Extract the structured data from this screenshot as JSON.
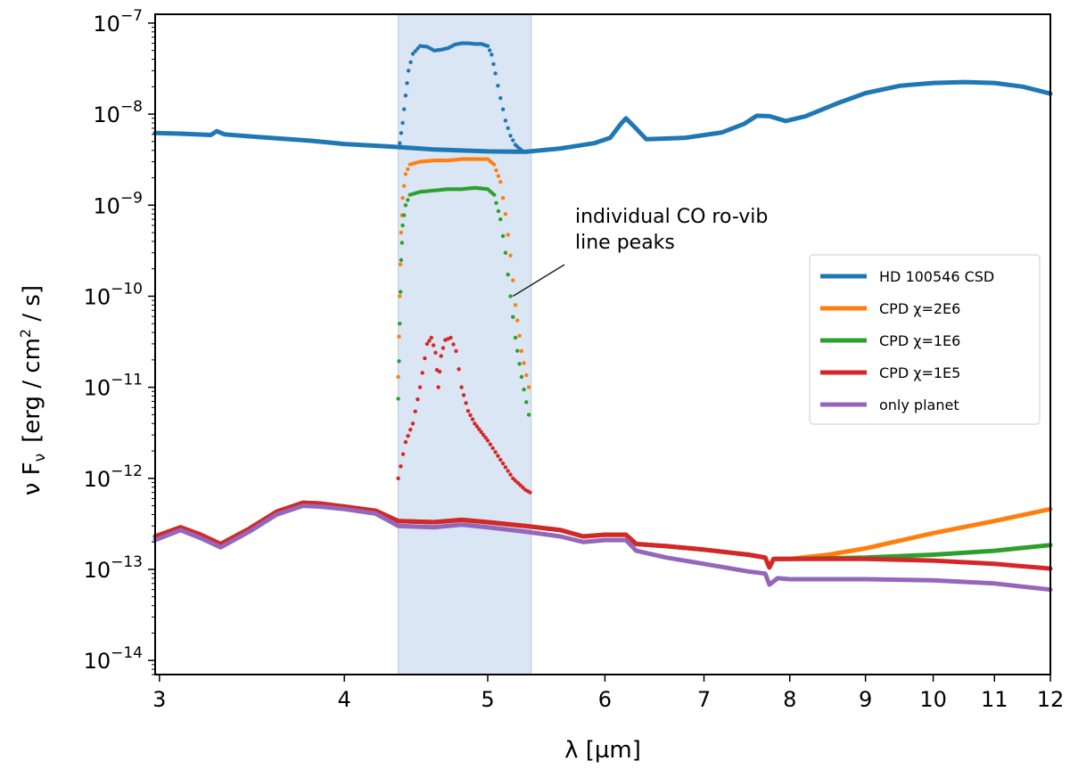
{
  "chart_data": {
    "type": "line",
    "xscale": "log",
    "yscale": "log",
    "xlabel": "λ [µm]",
    "ylabel_main": "ν F",
    "ylabel_sub": "ν",
    "ylabel_unit_pre": "[erg / cm",
    "ylabel_unit_sup": "2",
    "ylabel_unit_post": " / s]",
    "xlim": [
      2.98,
      12.0
    ],
    "ylim": [
      7e-15,
      1.25e-07
    ],
    "x_ticks": [
      {
        "value": 3,
        "label": "3"
      },
      {
        "value": 4,
        "label": "4"
      },
      {
        "value": 5,
        "label": "5"
      },
      {
        "value": 6,
        "label": "6"
      },
      {
        "value": 7,
        "label": "7"
      },
      {
        "value": 8,
        "label": "8"
      },
      {
        "value": 9,
        "label": "9"
      },
      {
        "value": 10,
        "label": "10"
      },
      {
        "value": 11,
        "label": "11"
      },
      {
        "value": 12,
        "label": "12"
      }
    ],
    "y_ticks": [
      {
        "value": 1e-14,
        "base": "10",
        "exp": "−14"
      },
      {
        "value": 1e-13,
        "base": "10",
        "exp": "−13"
      },
      {
        "value": 1e-12,
        "base": "10",
        "exp": "−12"
      },
      {
        "value": 1e-11,
        "base": "10",
        "exp": "−11"
      },
      {
        "value": 1e-10,
        "base": "10",
        "exp": "−10"
      },
      {
        "value": 1e-09,
        "base": "10",
        "exp": "−9"
      },
      {
        "value": 1e-08,
        "base": "10",
        "exp": "−8"
      },
      {
        "value": 1e-07,
        "base": "10",
        "exp": "−7"
      }
    ],
    "shaded_band": {
      "x_range": [
        4.35,
        5.35
      ],
      "color": "#dae6f3"
    },
    "series": [
      {
        "name": "HD 100546 CSD",
        "legend_label": "HD 100546 CSD",
        "color": "#1f77b4",
        "style": "line",
        "points": [
          [
            2.98,
            6.2e-09
          ],
          [
            3.1,
            6.1e-09
          ],
          [
            3.25,
            5.9e-09
          ],
          [
            3.28,
            6.5e-09
          ],
          [
            3.32,
            6e-09
          ],
          [
            3.5,
            5.6e-09
          ],
          [
            3.8,
            5.1e-09
          ],
          [
            4.0,
            4.7e-09
          ],
          [
            4.3,
            4.4e-09
          ],
          [
            4.6,
            4.1e-09
          ],
          [
            5.0,
            3.9e-09
          ],
          [
            5.3,
            3.85e-09
          ],
          [
            5.6,
            4.2e-09
          ],
          [
            5.9,
            4.8e-09
          ],
          [
            6.05,
            5.5e-09
          ],
          [
            6.15,
            7.8e-09
          ],
          [
            6.2,
            9e-09
          ],
          [
            6.27,
            7.5e-09
          ],
          [
            6.4,
            5.3e-09
          ],
          [
            6.8,
            5.5e-09
          ],
          [
            7.2,
            6.3e-09
          ],
          [
            7.45,
            7.8e-09
          ],
          [
            7.6,
            9.6e-09
          ],
          [
            7.75,
            9.5e-09
          ],
          [
            7.95,
            8.4e-09
          ],
          [
            8.2,
            9.5e-09
          ],
          [
            8.6,
            1.3e-08
          ],
          [
            9.0,
            1.7e-08
          ],
          [
            9.5,
            2.05e-08
          ],
          [
            10.0,
            2.2e-08
          ],
          [
            10.5,
            2.25e-08
          ],
          [
            11.0,
            2.2e-08
          ],
          [
            11.5,
            2e-08
          ],
          [
            12.0,
            1.68e-08
          ]
        ]
      },
      {
        "name": "CPD χ=2E6",
        "legend_label": "CPD χ=2E6",
        "color": "#ff7f0e",
        "style": "line",
        "points": [
          [
            2.98,
            2.3e-13
          ],
          [
            3.1,
            2.9e-13
          ],
          [
            3.2,
            2.4e-13
          ],
          [
            3.3,
            1.9e-13
          ],
          [
            3.45,
            2.8e-13
          ],
          [
            3.6,
            4.3e-13
          ],
          [
            3.75,
            5.4e-13
          ],
          [
            3.85,
            5.3e-13
          ],
          [
            4.0,
            4.9e-13
          ],
          [
            4.2,
            4.4e-13
          ],
          [
            4.35,
            3.4e-13
          ],
          [
            4.6,
            3.3e-13
          ],
          [
            4.8,
            3.5e-13
          ],
          [
            5.0,
            3.3e-13
          ],
          [
            5.3,
            3e-13
          ],
          [
            5.6,
            2.7e-13
          ],
          [
            5.8,
            2.3e-13
          ],
          [
            6.0,
            2.4e-13
          ],
          [
            6.2,
            2.4e-13
          ],
          [
            6.3,
            1.9e-13
          ],
          [
            6.6,
            1.8e-13
          ],
          [
            7.0,
            1.65e-13
          ],
          [
            7.5,
            1.45e-13
          ],
          [
            7.7,
            1.35e-13
          ],
          [
            7.75,
            1.05e-13
          ],
          [
            7.8,
            1.3e-13
          ],
          [
            8.0,
            1.3e-13
          ],
          [
            8.5,
            1.45e-13
          ],
          [
            9.0,
            1.7e-13
          ],
          [
            10.0,
            2.5e-13
          ],
          [
            11.0,
            3.4e-13
          ],
          [
            12.0,
            4.6e-13
          ]
        ]
      },
      {
        "name": "CPD χ=1E6",
        "legend_label": "CPD χ=1E6",
        "color": "#2ca02c",
        "style": "line",
        "points": [
          [
            2.98,
            2.3e-13
          ],
          [
            3.1,
            2.9e-13
          ],
          [
            3.2,
            2.4e-13
          ],
          [
            3.3,
            1.9e-13
          ],
          [
            3.45,
            2.8e-13
          ],
          [
            3.6,
            4.3e-13
          ],
          [
            3.75,
            5.4e-13
          ],
          [
            3.85,
            5.3e-13
          ],
          [
            4.0,
            4.9e-13
          ],
          [
            4.2,
            4.4e-13
          ],
          [
            4.35,
            3.4e-13
          ],
          [
            4.6,
            3.3e-13
          ],
          [
            4.8,
            3.5e-13
          ],
          [
            5.0,
            3.3e-13
          ],
          [
            5.3,
            3e-13
          ],
          [
            5.6,
            2.7e-13
          ],
          [
            5.8,
            2.3e-13
          ],
          [
            6.0,
            2.4e-13
          ],
          [
            6.2,
            2.4e-13
          ],
          [
            6.3,
            1.9e-13
          ],
          [
            6.6,
            1.8e-13
          ],
          [
            7.0,
            1.65e-13
          ],
          [
            7.5,
            1.45e-13
          ],
          [
            7.7,
            1.35e-13
          ],
          [
            7.75,
            1.05e-13
          ],
          [
            7.8,
            1.3e-13
          ],
          [
            8.0,
            1.3e-13
          ],
          [
            9.0,
            1.35e-13
          ],
          [
            10.0,
            1.45e-13
          ],
          [
            11.0,
            1.6e-13
          ],
          [
            12.0,
            1.85e-13
          ]
        ]
      },
      {
        "name": "CPD χ=1E5",
        "legend_label": "CPD χ=1E5",
        "color": "#d62728",
        "style": "line",
        "points": [
          [
            2.98,
            2.3e-13
          ],
          [
            3.1,
            2.9e-13
          ],
          [
            3.2,
            2.4e-13
          ],
          [
            3.3,
            1.9e-13
          ],
          [
            3.45,
            2.8e-13
          ],
          [
            3.6,
            4.3e-13
          ],
          [
            3.75,
            5.4e-13
          ],
          [
            3.85,
            5.3e-13
          ],
          [
            4.0,
            4.9e-13
          ],
          [
            4.2,
            4.4e-13
          ],
          [
            4.35,
            3.4e-13
          ],
          [
            4.6,
            3.3e-13
          ],
          [
            4.8,
            3.5e-13
          ],
          [
            5.0,
            3.3e-13
          ],
          [
            5.3,
            3e-13
          ],
          [
            5.6,
            2.7e-13
          ],
          [
            5.8,
            2.3e-13
          ],
          [
            6.0,
            2.4e-13
          ],
          [
            6.2,
            2.4e-13
          ],
          [
            6.3,
            1.9e-13
          ],
          [
            6.6,
            1.8e-13
          ],
          [
            7.0,
            1.65e-13
          ],
          [
            7.5,
            1.45e-13
          ],
          [
            7.7,
            1.35e-13
          ],
          [
            7.75,
            1.05e-13
          ],
          [
            7.8,
            1.3e-13
          ],
          [
            8.0,
            1.3e-13
          ],
          [
            9.0,
            1.3e-13
          ],
          [
            10.0,
            1.25e-13
          ],
          [
            11.0,
            1.15e-13
          ],
          [
            12.0,
            1.02e-13
          ]
        ]
      },
      {
        "name": "only planet",
        "legend_label": "only planet",
        "color": "#9467bd",
        "style": "line",
        "points": [
          [
            2.98,
            2.1e-13
          ],
          [
            3.1,
            2.7e-13
          ],
          [
            3.2,
            2.2e-13
          ],
          [
            3.3,
            1.75e-13
          ],
          [
            3.45,
            2.6e-13
          ],
          [
            3.6,
            4e-13
          ],
          [
            3.75,
            5e-13
          ],
          [
            3.85,
            4.9e-13
          ],
          [
            4.0,
            4.6e-13
          ],
          [
            4.2,
            4.1e-13
          ],
          [
            4.35,
            3e-13
          ],
          [
            4.6,
            2.9e-13
          ],
          [
            4.8,
            3.1e-13
          ],
          [
            5.0,
            2.9e-13
          ],
          [
            5.3,
            2.6e-13
          ],
          [
            5.6,
            2.3e-13
          ],
          [
            5.8,
            2e-13
          ],
          [
            6.0,
            2.1e-13
          ],
          [
            6.2,
            2.1e-13
          ],
          [
            6.3,
            1.6e-13
          ],
          [
            6.6,
            1.35e-13
          ],
          [
            7.0,
            1.15e-13
          ],
          [
            7.5,
            9.5e-14
          ],
          [
            7.7,
            9e-14
          ],
          [
            7.75,
            6.8e-14
          ],
          [
            7.85,
            8e-14
          ],
          [
            8.0,
            7.8e-14
          ],
          [
            9.0,
            7.8e-14
          ],
          [
            10.0,
            7.6e-14
          ],
          [
            11.0,
            7e-14
          ],
          [
            12.0,
            6e-14
          ]
        ]
      },
      {
        "name": "HD 100546 CSD CO line peaks",
        "color": "#1f77b4",
        "style": "dots",
        "points": [
          [
            4.36,
            4.8e-09
          ],
          [
            4.38,
            8e-09
          ],
          [
            4.4,
            1.6e-08
          ],
          [
            4.42,
            3e-08
          ],
          [
            4.45,
            4.6e-08
          ],
          [
            4.5,
            5.6e-08
          ],
          [
            4.55,
            5.5e-08
          ],
          [
            4.6,
            5e-08
          ],
          [
            4.65,
            5.1e-08
          ],
          [
            4.7,
            5.3e-08
          ],
          [
            4.75,
            5.8e-08
          ],
          [
            4.8,
            6e-08
          ],
          [
            4.85,
            6e-08
          ],
          [
            4.9,
            5.9e-08
          ],
          [
            4.95,
            5.9e-08
          ],
          [
            5.0,
            5.6e-08
          ],
          [
            5.03,
            4.5e-08
          ],
          [
            5.06,
            2.8e-08
          ],
          [
            5.1,
            1.5e-08
          ],
          [
            5.14,
            8.5e-09
          ],
          [
            5.18,
            5.8e-09
          ],
          [
            5.22,
            4.6e-09
          ],
          [
            5.27,
            4e-09
          ]
        ]
      },
      {
        "name": "CPD χ=2E6 CO line peaks",
        "color": "#ff7f0e",
        "style": "dots",
        "points": [
          [
            4.35,
            1.3e-11
          ],
          [
            4.36,
            1e-10
          ],
          [
            4.37,
            5e-10
          ],
          [
            4.38,
            1.2e-09
          ],
          [
            4.4,
            2.2e-09
          ],
          [
            4.43,
            2.8e-09
          ],
          [
            4.5,
            3e-09
          ],
          [
            4.6,
            3.1e-09
          ],
          [
            4.7,
            3.1e-09
          ],
          [
            4.8,
            3.2e-09
          ],
          [
            4.9,
            3.2e-09
          ],
          [
            5.0,
            3.2e-09
          ],
          [
            5.05,
            2.8e-09
          ],
          [
            5.1,
            1.8e-09
          ],
          [
            5.14,
            8e-10
          ],
          [
            5.18,
            2.8e-10
          ],
          [
            5.22,
            8e-11
          ],
          [
            5.27,
            2.5e-11
          ],
          [
            5.33,
            1e-11
          ]
        ]
      },
      {
        "name": "CPD χ=1E6 CO line peaks",
        "color": "#2ca02c",
        "style": "dots",
        "points": [
          [
            4.35,
            7.5e-12
          ],
          [
            4.36,
            5e-11
          ],
          [
            4.37,
            2.5e-10
          ],
          [
            4.38,
            6e-10
          ],
          [
            4.4,
            1e-09
          ],
          [
            4.43,
            1.3e-09
          ],
          [
            4.5,
            1.4e-09
          ],
          [
            4.6,
            1.45e-09
          ],
          [
            4.7,
            1.5e-09
          ],
          [
            4.8,
            1.5e-09
          ],
          [
            4.9,
            1.55e-09
          ],
          [
            5.0,
            1.5e-09
          ],
          [
            5.05,
            1.3e-09
          ],
          [
            5.1,
            7e-10
          ],
          [
            5.14,
            3e-10
          ],
          [
            5.18,
            1e-10
          ],
          [
            5.22,
            3.5e-11
          ],
          [
            5.27,
            1.3e-11
          ],
          [
            5.33,
            5e-12
          ]
        ]
      },
      {
        "name": "CPD χ=1E5 CO line peaks",
        "color": "#d62728",
        "style": "dots",
        "points": [
          [
            4.35,
            1e-12
          ],
          [
            4.4,
            2.5e-12
          ],
          [
            4.45,
            4e-12
          ],
          [
            4.5,
            1e-11
          ],
          [
            4.55,
            3e-11
          ],
          [
            4.58,
            3.5e-11
          ],
          [
            4.61,
            2.4e-11
          ],
          [
            4.63,
            1e-11
          ],
          [
            4.65,
            2.2e-11
          ],
          [
            4.68,
            3.3e-11
          ],
          [
            4.72,
            3.5e-11
          ],
          [
            4.76,
            2.5e-11
          ],
          [
            4.8,
            1e-11
          ],
          [
            4.85,
            5.5e-12
          ],
          [
            4.9,
            4e-12
          ],
          [
            5.0,
            2.6e-12
          ],
          [
            5.1,
            1.6e-12
          ],
          [
            5.2,
            1e-12
          ],
          [
            5.3,
            7.5e-13
          ],
          [
            5.34,
            7e-13
          ]
        ]
      }
    ],
    "legend": {
      "placement": "right",
      "items": [
        "HD 100546 CSD",
        "CPD χ=2E6",
        "CPD χ=1E6",
        "CPD χ=1E5",
        "only planet"
      ]
    },
    "annotation": {
      "line1": "individual CO ro-vib",
      "line2": "line peaks",
      "point_x": 5.2,
      "point_y": 1e-10
    }
  }
}
